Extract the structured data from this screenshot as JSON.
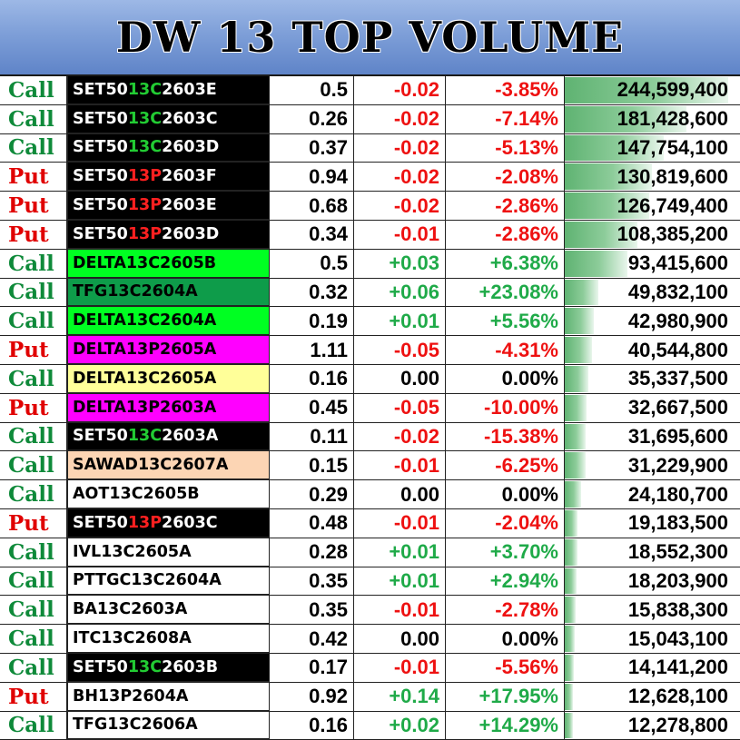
{
  "title": "DW 13 TOP VOLUME",
  "colors": {
    "call_text": "#0f8a3a",
    "put_text": "#e00000",
    "positive": "#1faa48",
    "negative": "#ee1111",
    "volume_bar": "#5fb372",
    "header_bg": "#7e9fd8"
  },
  "max_volume": 244599400,
  "rows": [
    {
      "type": "Call",
      "name_parts": [
        "SET50",
        "13C",
        "2603E"
      ],
      "bg": "#000000",
      "price": "0.5",
      "change": "-0.02",
      "pct": "-3.85%",
      "volume": "244,599,400",
      "volume_value": 244599400
    },
    {
      "type": "Call",
      "name_parts": [
        "SET50",
        "13C",
        "2603C"
      ],
      "bg": "#000000",
      "price": "0.26",
      "change": "-0.02",
      "pct": "-7.14%",
      "volume": "181,428,600",
      "volume_value": 181428600
    },
    {
      "type": "Call",
      "name_parts": [
        "SET50",
        "13C",
        "2603D"
      ],
      "bg": "#000000",
      "price": "0.37",
      "change": "-0.02",
      "pct": "-5.13%",
      "volume": "147,754,100",
      "volume_value": 147754100
    },
    {
      "type": "Put",
      "name_parts": [
        "SET50",
        "13P",
        "2603F"
      ],
      "bg": "#000000",
      "price": "0.94",
      "change": "-0.02",
      "pct": "-2.08%",
      "volume": "130,819,600",
      "volume_value": 130819600
    },
    {
      "type": "Put",
      "name_parts": [
        "SET50",
        "13P",
        "2603E"
      ],
      "bg": "#000000",
      "price": "0.68",
      "change": "-0.02",
      "pct": "-2.86%",
      "volume": "126,749,400",
      "volume_value": 126749400
    },
    {
      "type": "Put",
      "name_parts": [
        "SET50",
        "13P",
        "2603D"
      ],
      "bg": "#000000",
      "price": "0.34",
      "change": "-0.01",
      "pct": "-2.86%",
      "volume": "108,385,200",
      "volume_value": 108385200
    },
    {
      "type": "Call",
      "name_parts": [
        "DELTA13C2605B"
      ],
      "bg": "#00ff22",
      "price": "0.5",
      "change": "+0.03",
      "pct": "+6.38%",
      "volume": "93,415,600",
      "volume_value": 93415600
    },
    {
      "type": "Call",
      "name_parts": [
        "TFG13C2604A"
      ],
      "bg": "#0e9c4a",
      "price": "0.32",
      "change": "+0.06",
      "pct": "+23.08%",
      "volume": "49,832,100",
      "volume_value": 49832100
    },
    {
      "type": "Call",
      "name_parts": [
        "DELTA13C2604A"
      ],
      "bg": "#00ff22",
      "price": "0.19",
      "change": "+0.01",
      "pct": "+5.56%",
      "volume": "42,980,900",
      "volume_value": 42980900
    },
    {
      "type": "Put",
      "name_parts": [
        "DELTA13P2605A"
      ],
      "bg": "#ff00ff",
      "price": "1.11",
      "change": "-0.05",
      "pct": "-4.31%",
      "volume": "40,544,800",
      "volume_value": 40544800
    },
    {
      "type": "Call",
      "name_parts": [
        "DELTA13C2605A"
      ],
      "bg": "#ffff99",
      "price": "0.16",
      "change": "0.00",
      "pct": "0.00%",
      "volume": "35,337,500",
      "volume_value": 35337500
    },
    {
      "type": "Put",
      "name_parts": [
        "DELTA13P2603A"
      ],
      "bg": "#ff00ff",
      "price": "0.45",
      "change": "-0.05",
      "pct": "-10.00%",
      "volume": "32,667,500",
      "volume_value": 32667500
    },
    {
      "type": "Call",
      "name_parts": [
        "SET50",
        "13C",
        "2603A"
      ],
      "bg": "#000000",
      "price": "0.11",
      "change": "-0.02",
      "pct": "-15.38%",
      "volume": "31,695,600",
      "volume_value": 31695600
    },
    {
      "type": "Call",
      "name_parts": [
        "SAWAD13C2607A"
      ],
      "bg": "#fcd5b4",
      "price": "0.15",
      "change": "-0.01",
      "pct": "-6.25%",
      "volume": "31,229,900",
      "volume_value": 31229900
    },
    {
      "type": "Call",
      "name_parts": [
        "AOT13C2605B"
      ],
      "bg": "#ffffff",
      "price": "0.29",
      "change": "0.00",
      "pct": "0.00%",
      "volume": "24,180,700",
      "volume_value": 24180700
    },
    {
      "type": "Put",
      "name_parts": [
        "SET50",
        "13P",
        "2603C"
      ],
      "bg": "#000000",
      "price": "0.48",
      "change": "-0.01",
      "pct": "-2.04%",
      "volume": "19,183,500",
      "volume_value": 19183500
    },
    {
      "type": "Call",
      "name_parts": [
        "IVL13C2605A"
      ],
      "bg": "#ffffff",
      "price": "0.28",
      "change": "+0.01",
      "pct": "+3.70%",
      "volume": "18,552,300",
      "volume_value": 18552300
    },
    {
      "type": "Call",
      "name_parts": [
        "PTTGC13C2604A"
      ],
      "bg": "#ffffff",
      "price": "0.35",
      "change": "+0.01",
      "pct": "+2.94%",
      "volume": "18,203,900",
      "volume_value": 18203900
    },
    {
      "type": "Call",
      "name_parts": [
        "BA13C2603A"
      ],
      "bg": "#ffffff",
      "price": "0.35",
      "change": "-0.01",
      "pct": "-2.78%",
      "volume": "15,838,300",
      "volume_value": 15838300
    },
    {
      "type": "Call",
      "name_parts": [
        "ITC13C2608A"
      ],
      "bg": "#ffffff",
      "price": "0.42",
      "change": "0.00",
      "pct": "0.00%",
      "volume": "15,043,100",
      "volume_value": 15043100
    },
    {
      "type": "Call",
      "name_parts": [
        "SET50",
        "13C",
        "2603B"
      ],
      "bg": "#000000",
      "price": "0.17",
      "change": "-0.01",
      "pct": "-5.56%",
      "volume": "14,141,200",
      "volume_value": 14141200
    },
    {
      "type": "Put",
      "name_parts": [
        "BH13P2604A"
      ],
      "bg": "#ffffff",
      "price": "0.92",
      "change": "+0.14",
      "pct": "+17.95%",
      "volume": "12,628,100",
      "volume_value": 12628100
    },
    {
      "type": "Call",
      "name_parts": [
        "TFG13C2606A"
      ],
      "bg": "#ffffff",
      "price": "0.16",
      "change": "+0.02",
      "pct": "+14.29%",
      "volume": "12,278,800",
      "volume_value": 12278800
    }
  ]
}
